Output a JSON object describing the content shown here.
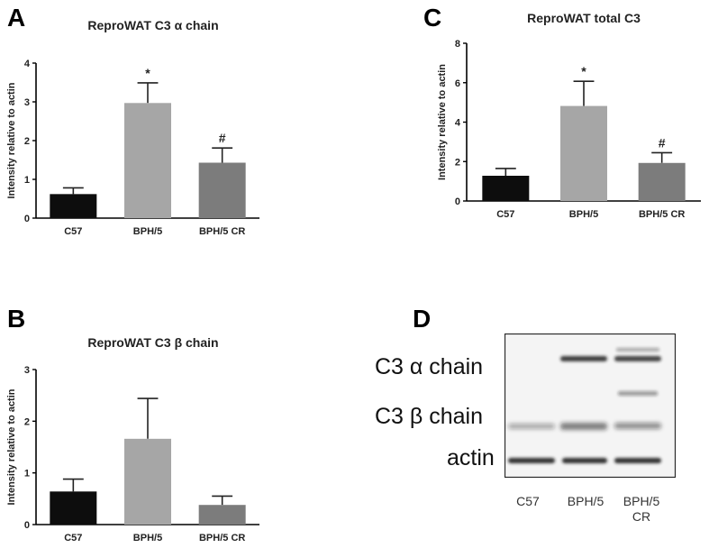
{
  "chart_data": [
    {
      "panel": "A",
      "type": "bar",
      "title": "ReproWAT C3 α chain",
      "ylabel": "Intensity relative to actin",
      "xlabel": "",
      "categories": [
        "C57",
        "BPH/5",
        "BPH/5 CR"
      ],
      "values": [
        0.62,
        2.97,
        1.43
      ],
      "errors": [
        0.16,
        0.52,
        0.38
      ],
      "annotations": [
        "",
        "*",
        "#"
      ],
      "ylim": [
        0,
        4
      ],
      "yticks": [
        0,
        1,
        2,
        3,
        4
      ],
      "colors": [
        "#0d0d0d",
        "#a6a6a6",
        "#7c7c7c"
      ],
      "grid": false,
      "legend": "none"
    },
    {
      "panel": "B",
      "type": "bar",
      "title": "ReproWAT C3 β chain",
      "ylabel": "Intensity relative to actin",
      "xlabel": "",
      "categories": [
        "C57",
        "BPH/5",
        "BPH/5 CR"
      ],
      "values": [
        0.64,
        1.66,
        0.38
      ],
      "errors": [
        0.24,
        0.78,
        0.17
      ],
      "annotations": [
        "",
        "",
        ""
      ],
      "ylim": [
        0,
        3
      ],
      "yticks": [
        0,
        1,
        2,
        3
      ],
      "colors": [
        "#0d0d0d",
        "#a6a6a6",
        "#7c7c7c"
      ],
      "grid": false,
      "legend": "none"
    },
    {
      "panel": "C",
      "type": "bar",
      "title": "ReproWAT total C3",
      "ylabel": "Intensity relative to actin",
      "xlabel": "",
      "categories": [
        "C57",
        "BPH/5",
        "BPH/5 CR"
      ],
      "values": [
        1.28,
        4.82,
        1.93
      ],
      "errors": [
        0.37,
        1.25,
        0.52
      ],
      "annotations": [
        "",
        "*",
        "#"
      ],
      "ylim": [
        0,
        8
      ],
      "yticks": [
        0,
        2,
        4,
        6,
        8
      ],
      "colors": [
        "#0d0d0d",
        "#a6a6a6",
        "#7c7c7c"
      ],
      "grid": false,
      "legend": "none"
    }
  ],
  "panel_letters": {
    "a": "A",
    "b": "B",
    "c": "C",
    "d": "D"
  },
  "blot": {
    "row_labels": {
      "alpha": "C3 α chain",
      "beta": "C3 β chain",
      "actin": "actin"
    },
    "lanes": [
      "C57",
      "BPH/5",
      "BPH/5\nCR"
    ],
    "colors": {
      "background": "#f4f4f4",
      "band": "#1c1c1c"
    }
  }
}
